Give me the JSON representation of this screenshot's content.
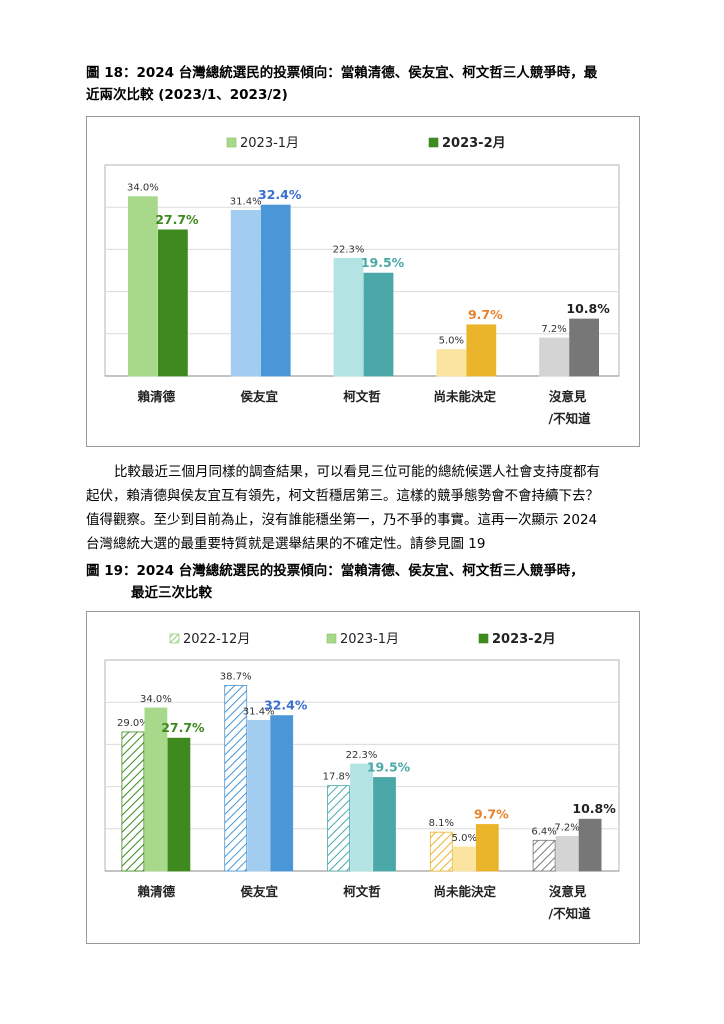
{
  "figure18": {
    "title": "圖 18：2024 台灣總統選民的投票傾向：當賴清德、侯友宜、柯文哲三人競爭時，最近兩次比較 (2023/1、2023/2)",
    "title_line1": "圖 18：2024 台灣總統選民的投票傾向：當賴清德、侯友宜、柯文哲三人競爭時，最",
    "title_line2": "近兩次比較 (2023/1、2023/2)"
  },
  "figure19": {
    "title_line1": "圖 19：2024 台灣總統選民的投票傾向：當賴清德、侯友宜、柯文哲三人競爭時，",
    "title_line2": "最近三次比較"
  },
  "paragraph": {
    "line1": "比較最近三個月同樣的調查結果，可以看見三位可能的總統候選人社會支持度都有",
    "line2": "起伏，賴清德與侯友宜互有領先，柯文哲穩居第三。這樣的競爭態勢會不會持續下去？",
    "line3": "值得觀察。至少到目前為止，沒有誰能穩坐第一，乃不爭的事實。這再一次顯示 2024",
    "line4": "台灣總統大選的最重要特質就是選舉結果的不確定性。請參見圖 19"
  },
  "colors": {
    "賴清德": [
      "#a8d98a",
      "#3f8a1f"
    ],
    "侯友宜": [
      "#a3cdf0",
      "#4a96d6"
    ],
    "柯文哲": [
      "#b3e3e3",
      "#4aa8a8"
    ],
    "尚未能決定": [
      "#fbe3a0",
      "#eab52a"
    ],
    "沒意見/不知道": [
      "#d4d4d4",
      "#777777"
    ],
    "label_colors": [
      "#3f8a1f",
      "#3a6fd0",
      "#4aa8a8",
      "#e8822a",
      "#222222"
    ]
  },
  "chart_data": [
    {
      "type": "bar",
      "categories": [
        "賴清德",
        "侯友宜",
        "柯文哲",
        "尚未能決定",
        "沒意見\n/不知道"
      ],
      "series": [
        {
          "name": "2023-1月",
          "values": [
            34.0,
            31.4,
            22.3,
            5.0,
            7.2
          ],
          "labels": [
            "34.0%",
            "31.4%",
            "22.3%",
            "5.0%",
            "7.2%"
          ]
        },
        {
          "name": "2023-2月",
          "values": [
            27.7,
            32.4,
            19.5,
            9.7,
            10.8
          ],
          "labels": [
            "27.7%",
            "32.4%",
            "19.5%",
            "9.7%",
            "10.8%"
          ]
        }
      ],
      "ylim": [
        0,
        40
      ],
      "grid": true,
      "legend_position": "top"
    },
    {
      "type": "bar",
      "categories": [
        "賴清德",
        "侯友宜",
        "柯文哲",
        "尚未能決定",
        "沒意見\n/不知道"
      ],
      "series": [
        {
          "name": "2022-12月",
          "values": [
            29.0,
            38.7,
            17.8,
            8.1,
            6.4
          ],
          "labels": [
            "29.0%",
            "38.7%",
            "17.8%",
            "8.1%",
            "6.4%"
          ]
        },
        {
          "name": "2023-1月",
          "values": [
            34.0,
            31.4,
            22.3,
            5.0,
            7.2
          ],
          "labels": [
            "34.0%",
            "31.4%",
            "22.3%",
            "5.0%",
            "7.2%"
          ]
        },
        {
          "name": "2023-2月",
          "values": [
            27.7,
            32.4,
            19.5,
            9.7,
            10.8
          ],
          "labels": [
            "27.7%",
            "32.4%",
            "19.5%",
            "9.7%",
            "10.8%"
          ]
        }
      ],
      "ylim": [
        0,
        44
      ],
      "grid": true,
      "legend_position": "top"
    }
  ]
}
